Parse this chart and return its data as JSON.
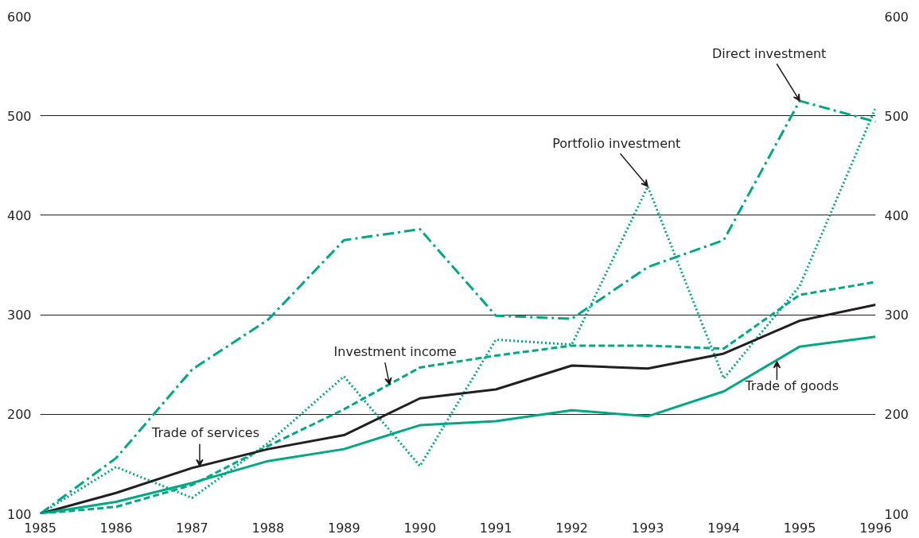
{
  "chart_data": {
    "type": "line",
    "x": [
      1985,
      1986,
      1987,
      1988,
      1989,
      1990,
      1991,
      1992,
      1993,
      1994,
      1995,
      1996
    ],
    "xlim": [
      1985,
      1996
    ],
    "xticks": [
      1985,
      1986,
      1987,
      1988,
      1989,
      1990,
      1991,
      1992,
      1993,
      1994,
      1995,
      1996
    ],
    "ylim": [
      100,
      600
    ],
    "yticks": [
      100,
      200,
      300,
      400,
      500,
      600
    ],
    "y2lim": [
      100,
      600
    ],
    "y2ticks": [
      100,
      200,
      300,
      400,
      500,
      600
    ],
    "grid": "y",
    "series": [
      {
        "color": "#00a884",
        "line_style": "dashdot",
        "values": [
          100,
          156,
          245,
          295,
          375,
          386,
          299,
          296,
          348,
          375,
          515,
          494
        ]
      },
      {
        "color": "#00a884",
        "line_style": "dotted",
        "values": [
          100,
          147,
          116,
          171,
          238,
          148,
          275,
          270,
          429,
          236,
          329,
          508
        ]
      },
      {
        "color": "#00a884",
        "line_style": "dashed",
        "values": [
          100,
          107,
          129,
          168,
          205,
          247,
          259,
          269,
          269,
          266,
          320,
          333
        ]
      },
      {
        "color": "#231f20",
        "line_style": "solid",
        "values": [
          100,
          121,
          146,
          165,
          179,
          216,
          225,
          249,
          246,
          261,
          294,
          310
        ]
      },
      {
        "color": "#00a884",
        "line_style": "solid",
        "values": [
          100,
          112,
          131,
          153,
          165,
          189,
          193,
          204,
          198,
          223,
          268,
          278
        ]
      }
    ],
    "annotations": [
      {
        "text": "Direct investment",
        "x": 1995,
        "y": 515
      },
      {
        "text": "Portfolio investment",
        "x": 1993,
        "y": 429
      },
      {
        "text": "Investment income",
        "x": 1989.6,
        "y": 230
      },
      {
        "text": "Trade of services",
        "x": 1987.1,
        "y": 148
      },
      {
        "text": "Trade of goods",
        "x": 1994.7,
        "y": 253
      }
    ]
  }
}
